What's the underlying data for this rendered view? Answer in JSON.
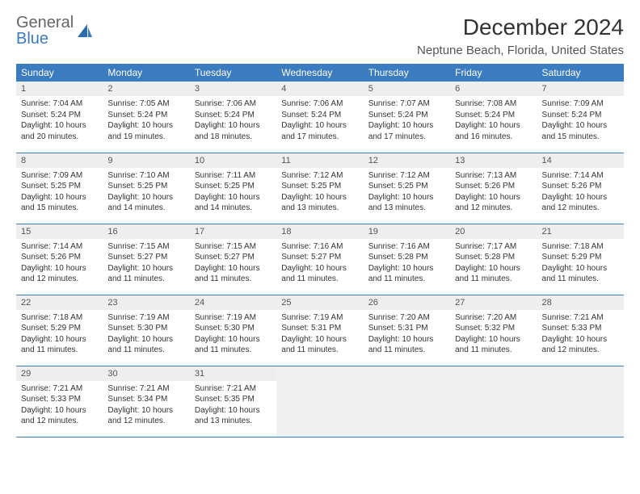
{
  "logo": {
    "part1": "General",
    "part2": "Blue"
  },
  "title": "December 2024",
  "location": "Neptune Beach, Florida, United States",
  "colors": {
    "header_bg": "#3b7bbf",
    "header_text": "#ffffff",
    "daynum_bg": "#eeeeee",
    "border": "#3b7bbf",
    "empty_bg": "#f0f0f0"
  },
  "weekdays": [
    "Sunday",
    "Monday",
    "Tuesday",
    "Wednesday",
    "Thursday",
    "Friday",
    "Saturday"
  ],
  "days": [
    {
      "n": 1,
      "sr": "7:04 AM",
      "ss": "5:24 PM",
      "dl": "10 hours and 20 minutes."
    },
    {
      "n": 2,
      "sr": "7:05 AM",
      "ss": "5:24 PM",
      "dl": "10 hours and 19 minutes."
    },
    {
      "n": 3,
      "sr": "7:06 AM",
      "ss": "5:24 PM",
      "dl": "10 hours and 18 minutes."
    },
    {
      "n": 4,
      "sr": "7:06 AM",
      "ss": "5:24 PM",
      "dl": "10 hours and 17 minutes."
    },
    {
      "n": 5,
      "sr": "7:07 AM",
      "ss": "5:24 PM",
      "dl": "10 hours and 17 minutes."
    },
    {
      "n": 6,
      "sr": "7:08 AM",
      "ss": "5:24 PM",
      "dl": "10 hours and 16 minutes."
    },
    {
      "n": 7,
      "sr": "7:09 AM",
      "ss": "5:24 PM",
      "dl": "10 hours and 15 minutes."
    },
    {
      "n": 8,
      "sr": "7:09 AM",
      "ss": "5:25 PM",
      "dl": "10 hours and 15 minutes."
    },
    {
      "n": 9,
      "sr": "7:10 AM",
      "ss": "5:25 PM",
      "dl": "10 hours and 14 minutes."
    },
    {
      "n": 10,
      "sr": "7:11 AM",
      "ss": "5:25 PM",
      "dl": "10 hours and 14 minutes."
    },
    {
      "n": 11,
      "sr": "7:12 AM",
      "ss": "5:25 PM",
      "dl": "10 hours and 13 minutes."
    },
    {
      "n": 12,
      "sr": "7:12 AM",
      "ss": "5:25 PM",
      "dl": "10 hours and 13 minutes."
    },
    {
      "n": 13,
      "sr": "7:13 AM",
      "ss": "5:26 PM",
      "dl": "10 hours and 12 minutes."
    },
    {
      "n": 14,
      "sr": "7:14 AM",
      "ss": "5:26 PM",
      "dl": "10 hours and 12 minutes."
    },
    {
      "n": 15,
      "sr": "7:14 AM",
      "ss": "5:26 PM",
      "dl": "10 hours and 12 minutes."
    },
    {
      "n": 16,
      "sr": "7:15 AM",
      "ss": "5:27 PM",
      "dl": "10 hours and 11 minutes."
    },
    {
      "n": 17,
      "sr": "7:15 AM",
      "ss": "5:27 PM",
      "dl": "10 hours and 11 minutes."
    },
    {
      "n": 18,
      "sr": "7:16 AM",
      "ss": "5:27 PM",
      "dl": "10 hours and 11 minutes."
    },
    {
      "n": 19,
      "sr": "7:16 AM",
      "ss": "5:28 PM",
      "dl": "10 hours and 11 minutes."
    },
    {
      "n": 20,
      "sr": "7:17 AM",
      "ss": "5:28 PM",
      "dl": "10 hours and 11 minutes."
    },
    {
      "n": 21,
      "sr": "7:18 AM",
      "ss": "5:29 PM",
      "dl": "10 hours and 11 minutes."
    },
    {
      "n": 22,
      "sr": "7:18 AM",
      "ss": "5:29 PM",
      "dl": "10 hours and 11 minutes."
    },
    {
      "n": 23,
      "sr": "7:19 AM",
      "ss": "5:30 PM",
      "dl": "10 hours and 11 minutes."
    },
    {
      "n": 24,
      "sr": "7:19 AM",
      "ss": "5:30 PM",
      "dl": "10 hours and 11 minutes."
    },
    {
      "n": 25,
      "sr": "7:19 AM",
      "ss": "5:31 PM",
      "dl": "10 hours and 11 minutes."
    },
    {
      "n": 26,
      "sr": "7:20 AM",
      "ss": "5:31 PM",
      "dl": "10 hours and 11 minutes."
    },
    {
      "n": 27,
      "sr": "7:20 AM",
      "ss": "5:32 PM",
      "dl": "10 hours and 11 minutes."
    },
    {
      "n": 28,
      "sr": "7:21 AM",
      "ss": "5:33 PM",
      "dl": "10 hours and 12 minutes."
    },
    {
      "n": 29,
      "sr": "7:21 AM",
      "ss": "5:33 PM",
      "dl": "10 hours and 12 minutes."
    },
    {
      "n": 30,
      "sr": "7:21 AM",
      "ss": "5:34 PM",
      "dl": "10 hours and 12 minutes."
    },
    {
      "n": 31,
      "sr": "7:21 AM",
      "ss": "5:35 PM",
      "dl": "10 hours and 13 minutes."
    }
  ],
  "labels": {
    "sunrise": "Sunrise:",
    "sunset": "Sunset:",
    "daylight": "Daylight:"
  }
}
